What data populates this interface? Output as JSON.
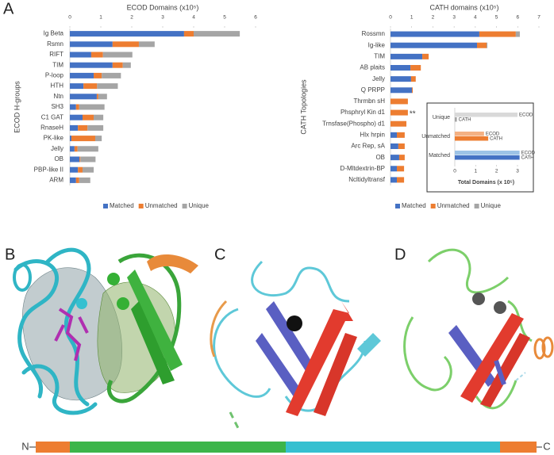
{
  "panel_labels": [
    "A",
    "B",
    "C",
    "D"
  ],
  "sequence_termini": [
    "N",
    "C"
  ],
  "chart_data": [
    {
      "type": "bar",
      "stacked": true,
      "title": "ECOD Domains (x10⁵)",
      "y_label": "ECOD H-groups",
      "categories": [
        "Ig Beta",
        "Rsmn",
        "RIFT",
        "TIM",
        "P-loop",
        "HTH",
        "Ntn",
        "SH3",
        "C1 GAT",
        "RnaseH",
        "PK-like",
        "Jelly",
        "OB",
        "PBP-like II",
        "ARM"
      ],
      "series": [
        {
          "name": "Matched",
          "color": "#4472c4",
          "values": [
            3.69,
            1.38,
            0.69,
            1.38,
            0.77,
            0.44,
            0.87,
            0.2,
            0.41,
            0.26,
            0.05,
            0.15,
            0.31,
            0.26,
            0.2
          ]
        },
        {
          "name": "Unmatched",
          "color": "#ed7d31",
          "values": [
            0.31,
            0.85,
            0.38,
            0.33,
            0.26,
            0.44,
            0.05,
            0.1,
            0.36,
            0.31,
            0.77,
            0.1,
            0.03,
            0.15,
            0.1
          ]
        },
        {
          "name": "Unique",
          "color": "#a5a5a5",
          "values": [
            1.49,
            0.51,
            0.95,
            0.26,
            0.62,
            0.67,
            0.28,
            0.82,
            0.31,
            0.51,
            0.21,
            0.67,
            0.49,
            0.36,
            0.36
          ]
        }
      ],
      "xlim": [
        0,
        6
      ],
      "xticks": [
        0,
        1,
        2,
        3,
        4,
        5,
        6
      ],
      "legend": "bottom"
    },
    {
      "type": "bar",
      "stacked": true,
      "title": "CATH domains (x10⁵)",
      "y_label": "CATH Topologies",
      "categories": [
        "Rossmn",
        "Ig-like",
        "TIM",
        "AB plaits",
        "Jelly",
        "Q PRPP",
        "Thrmbn sH",
        "Phsphryl Kin d1",
        "Trnsfase(Phospho) d1",
        "Hlx hrpin",
        "Arc Rep, sA",
        "OB",
        "D-Mltdextrin-BP",
        "Ncltidyltransf"
      ],
      "series": [
        {
          "name": "Matched",
          "color": "#4472c4",
          "values": [
            4.19,
            4.08,
            1.5,
            0.94,
            0.97,
            1.01,
            0,
            0,
            0,
            0.3,
            0.37,
            0.41,
            0.3,
            0.3
          ]
        },
        {
          "name": "Unmatched",
          "color": "#ed7d31",
          "values": [
            1.72,
            0.45,
            0.3,
            0.49,
            0.22,
            0.04,
            0.82,
            0.82,
            0.75,
            0.37,
            0.3,
            0.26,
            0.34,
            0.34
          ]
        },
        {
          "name": "Unique",
          "color": "#a5a5a5",
          "values": [
            0.19,
            0.04,
            0,
            0,
            0,
            0,
            0,
            0,
            0,
            0,
            0,
            0,
            0,
            0
          ]
        }
      ],
      "annotations": [
        {
          "text": "**",
          "category": "Phsphryl Kin d1"
        }
      ],
      "xlim": [
        0,
        7
      ],
      "xticks": [
        0,
        1,
        2,
        3,
        4,
        5,
        6,
        7
      ],
      "legend": "bottom"
    },
    {
      "type": "bar",
      "stacked": false,
      "x_label": "Total Domains (x 10⁵)",
      "categories": [
        "Unique",
        "Unmatched",
        "Matched"
      ],
      "series": [
        {
          "name": "ECOD",
          "colors": [
            "#d9d9d9",
            "#f4b183",
            "#9dc3e6"
          ],
          "values": [
            3.0,
            1.4,
            3.1
          ]
        },
        {
          "name": "CATH",
          "colors": [
            "#a5a5a5",
            "#ed7d31",
            "#4472c4"
          ],
          "values": [
            0.1,
            1.6,
            3.1
          ]
        }
      ],
      "xlim": [
        0,
        3
      ],
      "xticks": [
        0,
        1,
        2,
        3
      ],
      "legend": false
    }
  ]
}
